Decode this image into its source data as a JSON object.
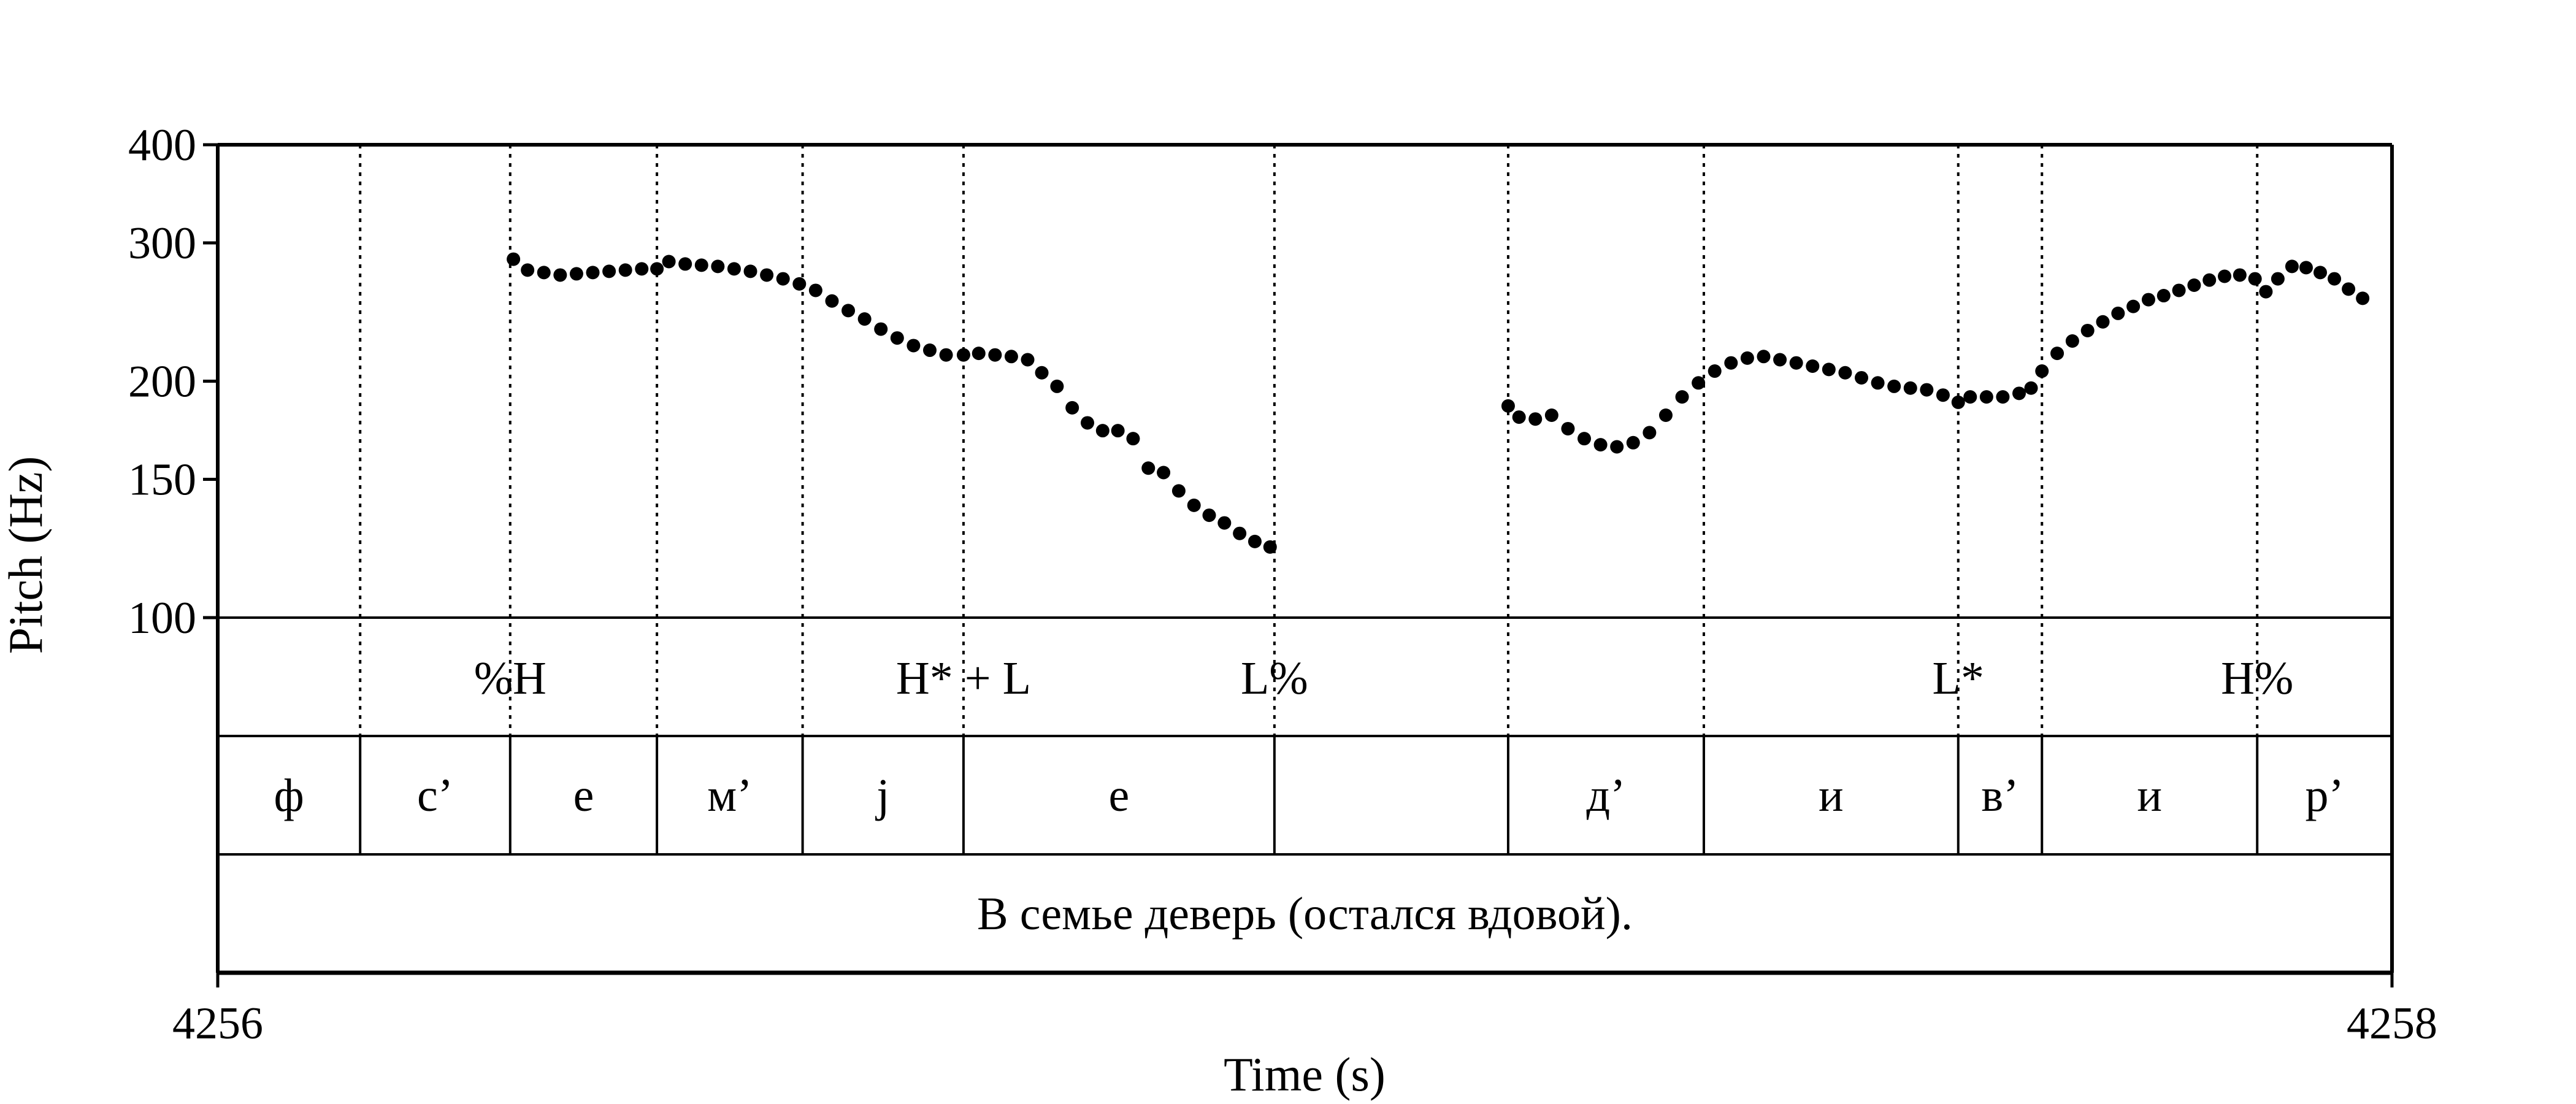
{
  "chart_data": {
    "type": "scatter",
    "xlabel": "Time (s)",
    "ylabel": "Pitch (Hz)",
    "xlim": [
      4256,
      4258
    ],
    "ylim": [
      100,
      400
    ],
    "yscale": "log",
    "x_tick_labels": [
      "4256",
      "4258"
    ],
    "y_ticks": [
      100,
      150,
      200,
      300,
      400
    ],
    "y_tick_labels": [
      "100",
      "150",
      "200",
      "300",
      "400"
    ],
    "grid": false,
    "point_color": "#000000",
    "boundaries": [
      4256.131,
      4256.269,
      4256.404,
      4256.538,
      4256.686,
      4256.972,
      4257.187,
      4257.367,
      4257.601,
      4257.678,
      4257.876
    ],
    "tones": [
      {
        "label": "%H",
        "t": 4256.269
      },
      {
        "label": "H* + L",
        "t": 4256.686
      },
      {
        "label": "L%",
        "t": 4256.972
      },
      {
        "label": "L*",
        "t": 4257.601
      },
      {
        "label": "H%",
        "t": 4257.876
      }
    ],
    "segments": [
      {
        "label": "ф",
        "start": 4256.0,
        "end": 4256.131
      },
      {
        "label": "с’",
        "start": 4256.131,
        "end": 4256.269
      },
      {
        "label": "е",
        "start": 4256.269,
        "end": 4256.404
      },
      {
        "label": "м’",
        "start": 4256.404,
        "end": 4256.538
      },
      {
        "label": "j",
        "start": 4256.538,
        "end": 4256.686
      },
      {
        "label": "е",
        "start": 4256.686,
        "end": 4256.972
      },
      {
        "label": "",
        "start": 4256.972,
        "end": 4257.187
      },
      {
        "label": "д’",
        "start": 4257.187,
        "end": 4257.367
      },
      {
        "label": "и",
        "start": 4257.367,
        "end": 4257.601
      },
      {
        "label": "в’",
        "start": 4257.601,
        "end": 4257.678
      },
      {
        "label": "и",
        "start": 4257.678,
        "end": 4257.876
      },
      {
        "label": "р’",
        "start": 4257.876,
        "end": 4258.0
      }
    ],
    "sentence": "В семье деверь (остался вдовой).",
    "pitch_segments": [
      {
        "t": [
          4256.272,
          4256.285,
          4256.3,
          4256.315,
          4256.33,
          4256.345,
          4256.36,
          4256.375,
          4256.39,
          4256.404,
          4256.415,
          4256.43,
          4256.445,
          4256.46,
          4256.475,
          4256.49,
          4256.505,
          4256.52,
          4256.535,
          4256.55,
          4256.565,
          4256.58,
          4256.595,
          4256.61,
          4256.625,
          4256.64,
          4256.655,
          4256.67,
          4256.686,
          4256.7,
          4256.715,
          4256.73,
          4256.745,
          4256.758,
          4256.772,
          4256.786,
          4256.8,
          4256.814,
          4256.828,
          4256.842,
          4256.856,
          4256.87,
          4256.884,
          4256.898,
          4256.912,
          4256.926,
          4256.94,
          4256.954,
          4256.968
        ],
        "f0": [
          286,
          277,
          275,
          273,
          274,
          275,
          276,
          277,
          278,
          278,
          284,
          282,
          281,
          280,
          278,
          276,
          273,
          270,
          266,
          261,
          253,
          246,
          240,
          233,
          227,
          222,
          219,
          216,
          216,
          217,
          216,
          215,
          213,
          205,
          197,
          185,
          177,
          173,
          173,
          169,
          155,
          153,
          145,
          139,
          135,
          132,
          128,
          125,
          123
        ]
      },
      {
        "t": [
          4257.187,
          4257.197,
          4257.212,
          4257.227,
          4257.242,
          4257.257,
          4257.272,
          4257.287,
          4257.302,
          4257.317,
          4257.332,
          4257.347,
          4257.362,
          4257.377,
          4257.392,
          4257.407,
          4257.422,
          4257.437,
          4257.452,
          4257.467,
          4257.482,
          4257.497,
          4257.512,
          4257.527,
          4257.542,
          4257.557,
          4257.572,
          4257.587,
          4257.601,
          4257.612,
          4257.627,
          4257.642,
          4257.657,
          4257.668,
          4257.678,
          4257.692,
          4257.706,
          4257.72,
          4257.734,
          4257.748,
          4257.762,
          4257.776,
          4257.79,
          4257.804,
          4257.818,
          4257.832,
          4257.846,
          4257.86,
          4257.874,
          4257.884,
          4257.895,
          4257.908,
          4257.921,
          4257.934,
          4257.947,
          4257.96,
          4257.973
        ],
        "f0": [
          186,
          180,
          179,
          181,
          174,
          169,
          166,
          165,
          167,
          172,
          181,
          191,
          199,
          206,
          211,
          214,
          215,
          213,
          211,
          209,
          207,
          205,
          202,
          199,
          197,
          196,
          195,
          192,
          188,
          191,
          191,
          191,
          193,
          196,
          206,
          217,
          225,
          232,
          238,
          244,
          249,
          254,
          257,
          261,
          265,
          269,
          272,
          273,
          270,
          260,
          270,
          280,
          279,
          275,
          270,
          262,
          255
        ]
      }
    ]
  }
}
